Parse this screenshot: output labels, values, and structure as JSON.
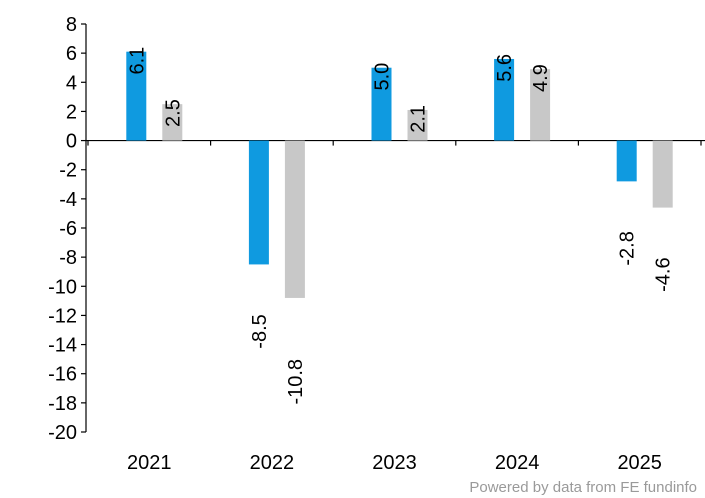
{
  "chart_data": {
    "type": "bar",
    "categories": [
      "2021",
      "2022",
      "2023",
      "2024",
      "2025"
    ],
    "series": [
      {
        "values": [
          6.1,
          -8.5,
          5.0,
          5.6,
          -2.8
        ],
        "color": "#0f9ae0"
      },
      {
        "values": [
          2.5,
          -10.8,
          2.1,
          4.9,
          -4.6
        ],
        "color": "#c8c8c8"
      }
    ],
    "data_labels": [
      [
        "6.1",
        "-8.5",
        "5.0",
        "5.6",
        "-2.8"
      ],
      [
        "2.5",
        "-10.8",
        "2.1",
        "4.9",
        "-4.6"
      ]
    ],
    "y_ticks": [
      "8",
      "6",
      "4",
      "2",
      "0",
      "-2",
      "-4",
      "-6",
      "-8",
      "-10",
      "-12",
      "-14",
      "-16",
      "-18",
      "-20"
    ],
    "ylim": [
      -20,
      8
    ],
    "grid": false,
    "legend": "none",
    "title": "",
    "xlabel": "",
    "ylabel": ""
  },
  "footer": {
    "credit": "Powered by data from FE fundinfo"
  }
}
